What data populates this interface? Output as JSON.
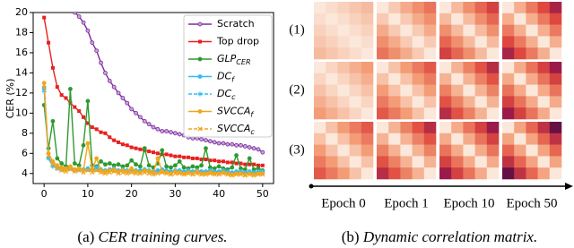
{
  "chart_data": [
    {
      "type": "line",
      "caption_label": "(a)",
      "caption": "CER training curves.",
      "y_label": "CER (%)",
      "x": [
        0,
        1,
        2,
        3,
        4,
        5,
        6,
        7,
        8,
        9,
        10,
        11,
        12,
        13,
        14,
        15,
        16,
        17,
        18,
        19,
        20,
        21,
        22,
        23,
        24,
        25,
        26,
        27,
        28,
        29,
        30,
        31,
        32,
        33,
        34,
        35,
        36,
        37,
        38,
        39,
        40,
        41,
        42,
        43,
        44,
        45,
        46,
        47,
        48,
        49,
        50
      ],
      "xlim": [
        -2.5,
        52.5
      ],
      "xticks": [
        0,
        10,
        20,
        30,
        40,
        50
      ],
      "ylim": [
        3,
        20
      ],
      "yticks": [
        4,
        6,
        8,
        10,
        12,
        14,
        16,
        18,
        20
      ],
      "series": [
        {
          "name": "Scratch",
          "color": "#7b2a9e",
          "marker": "o",
          "dashed": false,
          "values": [
            null,
            null,
            null,
            null,
            null,
            null,
            null,
            20.0,
            19.6,
            19.0,
            18.2,
            17.0,
            16.2,
            15.0,
            14.0,
            13.2,
            12.6,
            12.0,
            11.5,
            11.0,
            10.4,
            10.0,
            9.6,
            9.2,
            8.9,
            8.6,
            8.4,
            8.2,
            8.2,
            8.1,
            8.0,
            7.9,
            7.8,
            7.6,
            7.5,
            7.5,
            7.4,
            7.3,
            7.2,
            7.1,
            7.0,
            7.0,
            6.9,
            6.9,
            6.8,
            6.8,
            6.7,
            6.6,
            6.5,
            6.4,
            6.1
          ]
        },
        {
          "name": "Top drop",
          "color": "#e8201e",
          "marker": "s",
          "dashed": false,
          "values": [
            19.5,
            17.0,
            14.5,
            12.6,
            11.8,
            11.5,
            11.0,
            10.6,
            10.2,
            9.6,
            9.0,
            8.6,
            8.4,
            8.1,
            8.0,
            7.6,
            7.3,
            7.1,
            6.9,
            6.8,
            6.6,
            6.5,
            6.4,
            6.3,
            6.2,
            6.1,
            6.0,
            5.9,
            5.9,
            5.8,
            5.7,
            5.7,
            5.6,
            5.6,
            5.5,
            5.5,
            5.4,
            5.4,
            5.3,
            5.3,
            5.2,
            5.2,
            5.1,
            5.1,
            5.0,
            5.0,
            4.9,
            4.9,
            4.9,
            4.8,
            4.8
          ]
        },
        {
          "name": "GLP",
          "subscript": "CER",
          "color": "#2e9a2e",
          "marker": "o",
          "dashed": false,
          "values": [
            10.8,
            6.5,
            9.2,
            5.5,
            5.0,
            4.7,
            12.4,
            5.0,
            4.8,
            6.8,
            11.2,
            4.8,
            4.7,
            5.2,
            4.9,
            5.0,
            4.8,
            4.9,
            4.7,
            4.8,
            5.3,
            4.9,
            4.7,
            6.5,
            4.8,
            4.6,
            5.0,
            6.3,
            4.7,
            4.6,
            4.8,
            5.2,
            4.6,
            4.5,
            4.7,
            4.6,
            4.8,
            6.5,
            4.6,
            4.5,
            4.7,
            4.5,
            4.4,
            4.6,
            5.8,
            4.5,
            4.4,
            5.5,
            4.4,
            4.5,
            4.3
          ]
        },
        {
          "name": "DC",
          "subscript": "f",
          "color": "#33bdf0",
          "marker": "o",
          "dashed": false,
          "values": [
            12.5,
            5.6,
            4.8,
            4.6,
            4.5,
            4.5,
            4.6,
            4.4,
            4.5,
            4.4,
            4.5,
            4.4,
            4.6,
            4.4,
            4.3,
            4.4,
            4.5,
            4.3,
            4.4,
            4.3,
            4.4,
            4.3,
            4.3,
            4.4,
            4.3,
            4.2,
            4.3,
            4.4,
            4.3,
            4.2,
            4.3,
            4.3,
            4.2,
            4.3,
            4.2,
            4.3,
            4.2,
            4.2,
            4.3,
            4.2,
            4.2,
            4.3,
            4.2,
            4.1,
            4.2,
            4.2,
            4.1,
            4.2,
            4.1,
            4.2,
            4.2
          ]
        },
        {
          "name": "DC",
          "subscript": "c",
          "color": "#33bdf0",
          "marker": "*",
          "dashed": true,
          "values": [
            12.2,
            5.5,
            4.7,
            4.5,
            4.4,
            4.4,
            4.5,
            4.3,
            4.4,
            4.3,
            4.4,
            4.3,
            4.4,
            4.3,
            4.2,
            4.3,
            4.3,
            4.2,
            4.3,
            4.2,
            4.3,
            4.2,
            4.2,
            4.3,
            4.2,
            4.1,
            4.2,
            4.2,
            4.2,
            4.1,
            4.2,
            4.2,
            4.1,
            4.2,
            4.1,
            4.2,
            4.1,
            4.1,
            4.2,
            4.1,
            4.1,
            4.2,
            4.1,
            4.0,
            4.1,
            4.1,
            4.0,
            4.1,
            4.0,
            4.1,
            4.1
          ]
        },
        {
          "name": "SVCCA",
          "subscript": "f",
          "color": "#f2a51c",
          "marker": "o",
          "dashed": false,
          "values": [
            13.0,
            6.0,
            5.2,
            4.8,
            4.6,
            4.5,
            4.7,
            4.4,
            4.5,
            4.3,
            7.0,
            4.4,
            5.5,
            4.3,
            4.2,
            4.3,
            4.4,
            4.2,
            4.3,
            4.2,
            4.5,
            4.2,
            4.1,
            4.3,
            4.2,
            4.1,
            5.5,
            4.2,
            4.1,
            4.0,
            4.2,
            4.1,
            4.0,
            4.1,
            4.0,
            4.2,
            4.0,
            4.0,
            4.1,
            4.0,
            4.0,
            4.1,
            4.0,
            3.9,
            4.0,
            4.0,
            3.9,
            4.0,
            3.9,
            4.0,
            4.0
          ]
        },
        {
          "name": "SVCCA",
          "subscript": "c",
          "color": "#f2a51c",
          "marker": "x",
          "dashed": true,
          "values": [
            12.8,
            5.8,
            4.9,
            4.5,
            4.3,
            4.2,
            4.4,
            4.2,
            4.3,
            4.1,
            4.3,
            4.1,
            4.3,
            4.1,
            4.0,
            4.1,
            4.2,
            4.0,
            4.1,
            4.0,
            4.1,
            4.0,
            4.0,
            4.1,
            4.0,
            3.9,
            4.0,
            4.1,
            4.0,
            3.9,
            4.0,
            4.0,
            3.9,
            4.0,
            3.9,
            4.0,
            3.9,
            3.9,
            4.0,
            3.9,
            3.9,
            4.0,
            3.9,
            3.8,
            3.9,
            3.9,
            3.8,
            3.9,
            3.8,
            3.9,
            3.9
          ]
        }
      ]
    },
    {
      "type": "heatmap_grid",
      "caption_label": "(b)",
      "caption": "Dynamic correlation matrix.",
      "row_labels": [
        "(1)",
        "(2)",
        "(3)"
      ],
      "col_labels": [
        "Epoch 0",
        "Epoch 1",
        "Epoch 10",
        "Epoch 50"
      ],
      "clim": [
        0.2,
        1
      ],
      "matrices": [
        [
          [
            [
              1,
              0.97,
              0.94,
              0.91,
              0.88
            ],
            [
              0.97,
              1,
              0.97,
              0.94,
              0.91
            ],
            [
              0.94,
              0.97,
              1,
              0.97,
              0.94
            ],
            [
              0.91,
              0.94,
              0.97,
              1,
              0.97
            ],
            [
              0.88,
              0.91,
              0.94,
              0.97,
              1
            ]
          ],
          [
            [
              1,
              0.92,
              0.84,
              0.76,
              0.68
            ],
            [
              0.92,
              1,
              0.92,
              0.84,
              0.76
            ],
            [
              0.84,
              0.92,
              1,
              0.92,
              0.84
            ],
            [
              0.76,
              0.84,
              0.92,
              1,
              0.92
            ],
            [
              0.68,
              0.76,
              0.84,
              0.92,
              1
            ]
          ],
          [
            [
              1,
              0.88,
              0.76,
              0.64,
              0.52
            ],
            [
              0.88,
              1,
              0.88,
              0.76,
              0.64
            ],
            [
              0.76,
              0.88,
              1,
              0.88,
              0.76
            ],
            [
              0.64,
              0.76,
              0.88,
              1,
              0.88
            ],
            [
              0.52,
              0.64,
              0.76,
              0.88,
              1
            ]
          ],
          [
            [
              1,
              0.85,
              0.7,
              0.55,
              0.4
            ],
            [
              0.85,
              1,
              0.85,
              0.7,
              0.55
            ],
            [
              0.7,
              0.85,
              1,
              0.85,
              0.7
            ],
            [
              0.55,
              0.7,
              0.85,
              1,
              0.85
            ],
            [
              0.4,
              0.55,
              0.7,
              0.85,
              1
            ]
          ]
        ],
        [
          [
            [
              1,
              0.95,
              0.9,
              0.85,
              0.8
            ],
            [
              0.95,
              1,
              0.95,
              0.9,
              0.85
            ],
            [
              0.9,
              0.95,
              1,
              0.95,
              0.9
            ],
            [
              0.85,
              0.9,
              0.95,
              1,
              0.95
            ],
            [
              0.8,
              0.85,
              0.9,
              0.95,
              1
            ]
          ],
          [
            [
              1,
              0.9,
              0.8,
              0.7,
              0.6
            ],
            [
              0.9,
              1,
              0.9,
              0.8,
              0.7
            ],
            [
              0.8,
              0.9,
              1,
              0.9,
              0.8
            ],
            [
              0.7,
              0.8,
              0.9,
              1,
              0.9
            ],
            [
              0.6,
              0.7,
              0.8,
              0.9,
              1
            ]
          ],
          [
            [
              1,
              0.86,
              0.72,
              0.58,
              0.44
            ],
            [
              0.86,
              1,
              0.86,
              0.72,
              0.58
            ],
            [
              0.72,
              0.86,
              1,
              0.86,
              0.72
            ],
            [
              0.58,
              0.72,
              0.86,
              1,
              0.86
            ],
            [
              0.44,
              0.58,
              0.72,
              0.86,
              1
            ]
          ],
          [
            [
              1,
              0.84,
              0.68,
              0.52,
              0.36
            ],
            [
              0.84,
              1,
              0.84,
              0.68,
              0.52
            ],
            [
              0.68,
              0.84,
              1,
              0.84,
              0.68
            ],
            [
              0.52,
              0.68,
              0.84,
              1,
              0.84
            ],
            [
              0.36,
              0.52,
              0.68,
              0.84,
              1
            ]
          ]
        ],
        [
          [
            [
              1,
              0.9,
              0.8,
              0.7,
              0.6
            ],
            [
              0.9,
              1,
              0.9,
              0.8,
              0.7
            ],
            [
              0.8,
              0.9,
              1,
              0.9,
              0.8
            ],
            [
              0.7,
              0.8,
              0.9,
              1,
              0.9
            ],
            [
              0.6,
              0.7,
              0.8,
              0.9,
              1
            ]
          ],
          [
            [
              1,
              0.86,
              0.72,
              0.58,
              0.44
            ],
            [
              0.86,
              1,
              0.86,
              0.72,
              0.58
            ],
            [
              0.72,
              0.86,
              1,
              0.86,
              0.72
            ],
            [
              0.58,
              0.72,
              0.86,
              1,
              0.86
            ],
            [
              0.44,
              0.58,
              0.72,
              0.86,
              1
            ]
          ],
          [
            [
              1,
              0.84,
              0.68,
              0.52,
              0.36
            ],
            [
              0.84,
              1,
              0.84,
              0.68,
              0.52
            ],
            [
              0.68,
              0.84,
              1,
              0.84,
              0.68
            ],
            [
              0.52,
              0.68,
              0.84,
              1,
              0.84
            ],
            [
              0.36,
              0.52,
              0.68,
              0.84,
              1
            ]
          ],
          [
            [
              1,
              0.82,
              0.64,
              0.46,
              0.28
            ],
            [
              0.82,
              1,
              0.82,
              0.64,
              0.46
            ],
            [
              0.64,
              0.82,
              1,
              0.82,
              0.64
            ],
            [
              0.46,
              0.64,
              0.82,
              1,
              0.82
            ],
            [
              0.28,
              0.46,
              0.64,
              0.82,
              1
            ]
          ]
        ]
      ]
    }
  ]
}
